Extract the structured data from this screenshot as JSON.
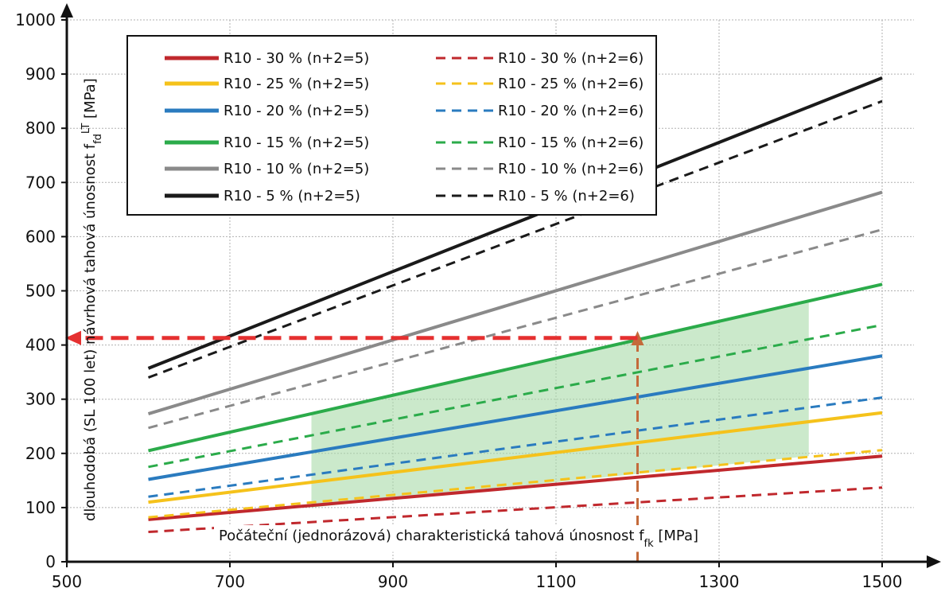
{
  "chart_data": {
    "type": "line",
    "xlabel": "Počáteční (jednorázová) charakteristická tahová únosnost f",
    "xlabel_sub": "fk",
    "xlabel_unit": " [MPa]",
    "ylabel": "dlouhodobá (SL 100 let) návrhová tahová únosnost f",
    "ylabel_sub": "fd",
    "ylabel_sup": "LT",
    "ylabel_unit": " [MPa]",
    "xlim": [
      500,
      1540
    ],
    "ylim": [
      0,
      1000
    ],
    "x_ticks": [
      500,
      700,
      900,
      1100,
      1300,
      1500
    ],
    "y_ticks": [
      0,
      100,
      200,
      300,
      400,
      500,
      600,
      700,
      800,
      900,
      1000
    ],
    "grid": true,
    "legend_position": "top-left",
    "series": [
      {
        "name": "R10 - 30 % (n+2=5)",
        "color": "#c0282d",
        "dash": "solid",
        "x": [
          600,
          1500
        ],
        "y": [
          78,
          195
        ]
      },
      {
        "name": "R10 - 30 % (n+2=6)",
        "color": "#c0282d",
        "dash": "dashed",
        "x": [
          600,
          1500
        ],
        "y": [
          55,
          137
        ]
      },
      {
        "name": "R10 - 25 % (n+2=5)",
        "color": "#f5c21b",
        "dash": "solid",
        "x": [
          600,
          1500
        ],
        "y": [
          110,
          275
        ]
      },
      {
        "name": "R10 - 25 % (n+2=6)",
        "color": "#f5c21b",
        "dash": "dashed",
        "x": [
          600,
          1500
        ],
        "y": [
          82,
          206
        ]
      },
      {
        "name": "R10 - 20 % (n+2=5)",
        "color": "#2a7bbf",
        "dash": "solid",
        "x": [
          600,
          1500
        ],
        "y": [
          152,
          380
        ]
      },
      {
        "name": "R10 - 20 % (n+2=6)",
        "color": "#2a7bbf",
        "dash": "dashed",
        "x": [
          600,
          1500
        ],
        "y": [
          120,
          303
        ]
      },
      {
        "name": "R10 - 15 % (n+2=5)",
        "color": "#2bab4a",
        "dash": "solid",
        "x": [
          600,
          1500
        ],
        "y": [
          205,
          512
        ]
      },
      {
        "name": "R10 - 15 % (n+2=6)",
        "color": "#2bab4a",
        "dash": "dashed",
        "x": [
          600,
          1500
        ],
        "y": [
          175,
          437
        ]
      },
      {
        "name": "R10 - 10 % (n+2=5)",
        "color": "#8a8a8a",
        "dash": "solid",
        "x": [
          600,
          1500
        ],
        "y": [
          273,
          682
        ]
      },
      {
        "name": "R10 - 10 % (n+2=6)",
        "color": "#8a8a8a",
        "dash": "dashed",
        "x": [
          600,
          1500
        ],
        "y": [
          247,
          613
        ]
      },
      {
        "name": "R10 - 5 % (n+2=5)",
        "color": "#1a1a1a",
        "dash": "solid",
        "x": [
          600,
          1500
        ],
        "y": [
          357,
          893
        ]
      },
      {
        "name": "R10 - 5 % (n+2=6)",
        "color": "#1a1a1a",
        "dash": "dashed",
        "x": [
          600,
          1500
        ],
        "y": [
          340,
          850
        ]
      }
    ],
    "shaded_region": {
      "color": "#a8dba8",
      "x_range": [
        800,
        1410
      ],
      "y_top": [
        272,
        484
      ],
      "y_bottom": [
        100,
        195
      ]
    },
    "annotations": [
      {
        "type": "arrow-up",
        "color": "#c46a3a",
        "x": 1200,
        "from_y": 0,
        "to_y": 420
      },
      {
        "type": "arrow-left",
        "color": "#e53030",
        "y": 413,
        "from_x": 1200,
        "to_x": 500
      }
    ]
  }
}
